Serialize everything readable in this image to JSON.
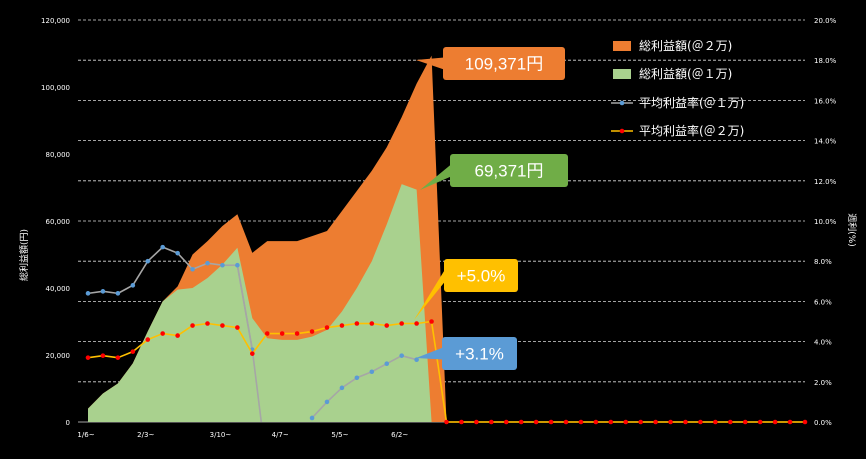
{
  "chart_data": {
    "type": "area",
    "left_axis": {
      "label": "総利益額(円)",
      "ylim": [
        0,
        120000
      ],
      "ticks": [
        "0",
        "20,000",
        "40,000",
        "60,000",
        "80,000",
        "100,000",
        "120,000"
      ]
    },
    "right_axis": {
      "label": "週利(%)",
      "ylim": [
        0,
        20
      ],
      "ticks": [
        "0.0%",
        "2.0%",
        "4.0%",
        "6.0%",
        "8.0%",
        "10.0%",
        "12.0%",
        "14.0%",
        "16.0%",
        "18.0%",
        "20.0%"
      ]
    },
    "x_tick_labels": [
      {
        "label": "1/6~",
        "index": 0
      },
      {
        "label": "2/3~",
        "index": 4
      },
      {
        "label": "3/10~",
        "index": 9
      },
      {
        "label": "4/7~",
        "index": 13
      },
      {
        "label": "5/5~",
        "index": 17
      },
      {
        "label": "6/2~",
        "index": 21
      }
    ],
    "n_points": 49,
    "series": [
      {
        "name": "総利益額(＠２万)",
        "axis": "left",
        "kind": "area",
        "color": "#ED7D31",
        "values": [
          4000,
          8500,
          11500,
          17500,
          27000,
          36000,
          40500,
          50000,
          54000,
          58500,
          62000,
          50500,
          54000,
          54000,
          54000,
          55500,
          57000,
          63000,
          69000,
          75000,
          82000,
          91000,
          101000,
          109371,
          0
        ]
      },
      {
        "name": "総利益額(＠１万)",
        "axis": "left",
        "kind": "area",
        "color": "#A9D18E",
        "values": [
          4000,
          8500,
          11500,
          17500,
          27000,
          36000,
          39500,
          40000,
          43000,
          47000,
          52000,
          31000,
          25000,
          24500,
          24500,
          25500,
          27500,
          33000,
          40000,
          48000,
          59000,
          71000,
          69371,
          0
        ]
      },
      {
        "name": "平均利益率(＠１万)",
        "axis": "right",
        "kind": "line",
        "color": "#5B9BD5",
        "segment_color": "#A6A6A6",
        "values": [
          6.4,
          6.5,
          6.4,
          6.8,
          8.0,
          8.7,
          8.4,
          7.6,
          7.9,
          7.8,
          7.8,
          3.6,
          null,
          null,
          null,
          0.2,
          1.0,
          1.7,
          2.2,
          2.5,
          2.9,
          3.3,
          3.1
        ]
      },
      {
        "name": "平均利益率(＠２万)",
        "axis": "right",
        "kind": "line",
        "color": "#FF0000",
        "segment_color": "#FFC000",
        "values": [
          3.2,
          3.3,
          3.2,
          3.5,
          4.1,
          4.4,
          4.3,
          4.8,
          4.9,
          4.8,
          4.7,
          3.4,
          4.4,
          4.4,
          4.4,
          4.5,
          4.7,
          4.8,
          4.9,
          4.9,
          4.8,
          4.9,
          4.9,
          5.0,
          0,
          0,
          0,
          0,
          0,
          0,
          0,
          0,
          0,
          0,
          0,
          0,
          0,
          0,
          0,
          0,
          0,
          0,
          0,
          0,
          0,
          0,
          0,
          0,
          0
        ]
      }
    ],
    "callouts": [
      {
        "text": "109,371円",
        "color": "#ED7D31"
      },
      {
        "text": "69,371円",
        "color": "#70AD47"
      },
      {
        "text": "+5.0%",
        "color": "#FFC000"
      },
      {
        "text": "+3.1%",
        "color": "#5B9BD5"
      }
    ],
    "legend_position": "top-right",
    "grid": "horizontal dashed"
  }
}
